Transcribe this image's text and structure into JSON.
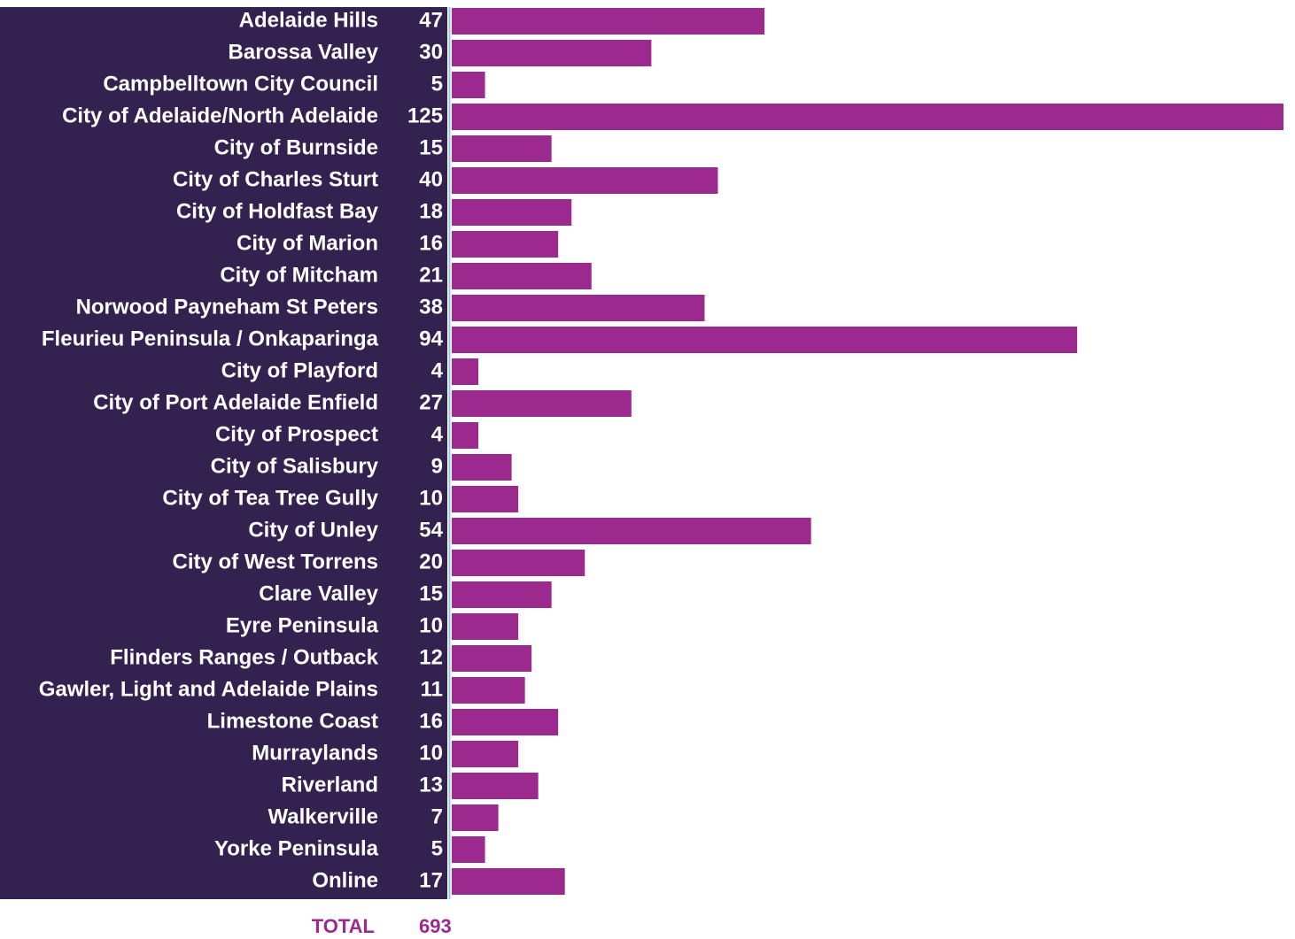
{
  "chart_data": {
    "type": "bar",
    "orientation": "horizontal",
    "categories": [
      "Adelaide Hills",
      "Barossa Valley",
      "Campbelltown City Council",
      "City of Adelaide/North Adelaide",
      "City of Burnside",
      "City of Charles Sturt",
      "City of Holdfast Bay",
      "City of Marion",
      "City of Mitcham",
      "Norwood Payneham St Peters",
      "Fleurieu Peninsula / Onkaparinga",
      "City of Playford",
      "City of Port Adelaide Enfield",
      "City of Prospect",
      "City of Salisbury",
      "City of Tea Tree Gully",
      "City of Unley",
      "City of West Torrens",
      "Clare Valley",
      "Eyre Peninsula",
      "Flinders Ranges / Outback",
      "Gawler, Light and Adelaide Plains",
      "Limestone Coast",
      "Murraylands",
      "Riverland",
      "Walkerville",
      "Yorke Peninsula",
      "Online"
    ],
    "values": [
      47,
      30,
      5,
      125,
      15,
      40,
      18,
      16,
      21,
      38,
      94,
      4,
      27,
      4,
      9,
      10,
      54,
      20,
      15,
      10,
      12,
      11,
      16,
      10,
      13,
      7,
      5,
      17
    ],
    "color": "#9c2a8e",
    "total_label": "TOTAL",
    "total": 693
  }
}
